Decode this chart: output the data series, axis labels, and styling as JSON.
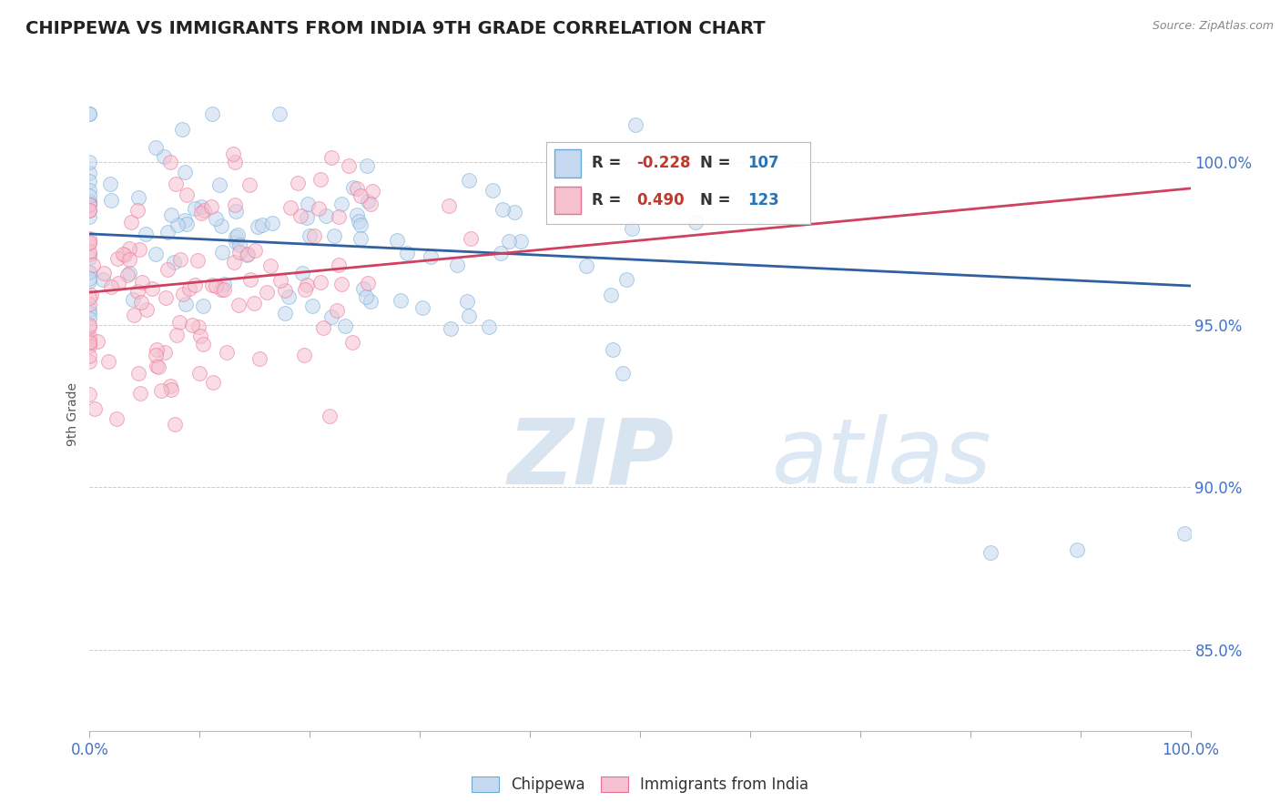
{
  "title": "CHIPPEWA VS IMMIGRANTS FROM INDIA 9TH GRADE CORRELATION CHART",
  "source": "Source: ZipAtlas.com",
  "xlabel_blue": "Chippewa",
  "xlabel_pink": "Immigrants from India",
  "ylabel": "9th Grade",
  "blue_R": -0.228,
  "blue_N": 107,
  "pink_R": 0.49,
  "pink_N": 123,
  "blue_color": "#c5d8f0",
  "blue_edge": "#6aaad4",
  "pink_color": "#f5c0d0",
  "pink_edge": "#e87090",
  "trendline_blue": "#3060a0",
  "trendline_pink": "#d04060",
  "x_min": 0.0,
  "x_max": 100.0,
  "y_min": 82.5,
  "y_max": 102.0,
  "yticks": [
    85.0,
    90.0,
    95.0,
    100.0
  ],
  "xtick_labels_show": [
    0.0,
    100.0
  ],
  "title_color": "#222222",
  "source_color": "#888888",
  "tick_color": "#4472c4",
  "grid_color": "#cccccc",
  "watermark_color": "#d8e4f0",
  "marker_size": 130,
  "marker_alpha": 0.55,
  "blue_trend_start_y": 97.8,
  "blue_trend_end_y": 96.2,
  "pink_trend_start_y": 96.0,
  "pink_trend_end_y": 99.2
}
